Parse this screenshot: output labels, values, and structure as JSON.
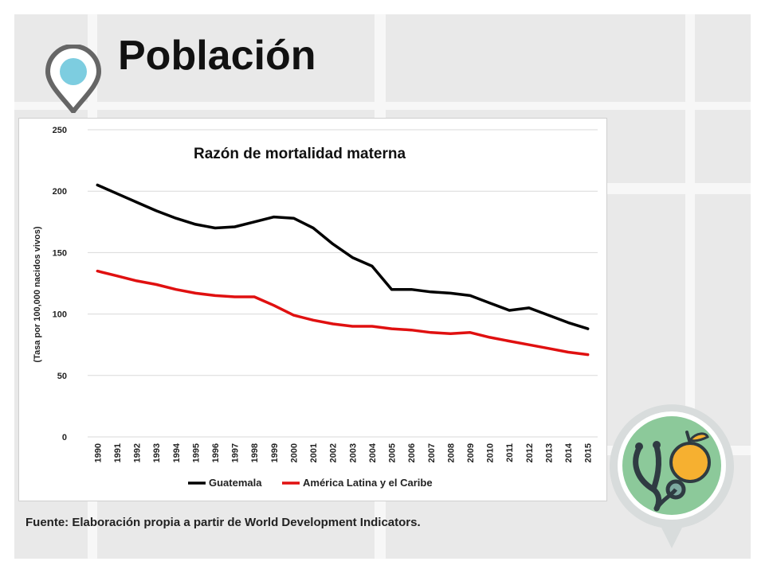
{
  "page": {
    "title": "Población",
    "source": "Fuente: Elaboración propia a partir de World Development Indicators."
  },
  "icons": {
    "location": "location-pin-icon",
    "health": "stethoscope-orange-badge-icon"
  },
  "colors": {
    "guatemala": "#000000",
    "latam": "#e01010",
    "pin_ring": "#666666",
    "pin_dot": "#7dcde0",
    "badge_bg": "#8cc99a"
  },
  "chart_data": {
    "type": "line",
    "title": "Razón de mortalidad materna",
    "xlabel": "",
    "ylabel": "(Tasa por 100,000 nacidos vivos)",
    "ylim": [
      0,
      250
    ],
    "yticks": [
      "0",
      "50",
      "100",
      "150",
      "200",
      "250"
    ],
    "grid": true,
    "legend_position": "bottom",
    "categories": [
      "1990",
      "1991",
      "1992",
      "1993",
      "1994",
      "1995",
      "1996",
      "1997",
      "1998",
      "1999",
      "2000",
      "2001",
      "2002",
      "2003",
      "2004",
      "2005",
      "2006",
      "2007",
      "2008",
      "2009",
      "2010",
      "2011",
      "2012",
      "2013",
      "2014",
      "2015"
    ],
    "series": [
      {
        "name": "Guatemala",
        "values": [
          205,
          198,
          191,
          184,
          178,
          173,
          170,
          171,
          175,
          179,
          178,
          170,
          157,
          146,
          139,
          120,
          120,
          118,
          117,
          115,
          109,
          103,
          105,
          99,
          93,
          88
        ]
      },
      {
        "name": "América Latina y el Caribe",
        "values": [
          135,
          131,
          127,
          124,
          120,
          117,
          115,
          114,
          114,
          107,
          99,
          95,
          92,
          90,
          90,
          88,
          87,
          85,
          84,
          85,
          81,
          78,
          75,
          72,
          69,
          67
        ]
      }
    ]
  }
}
